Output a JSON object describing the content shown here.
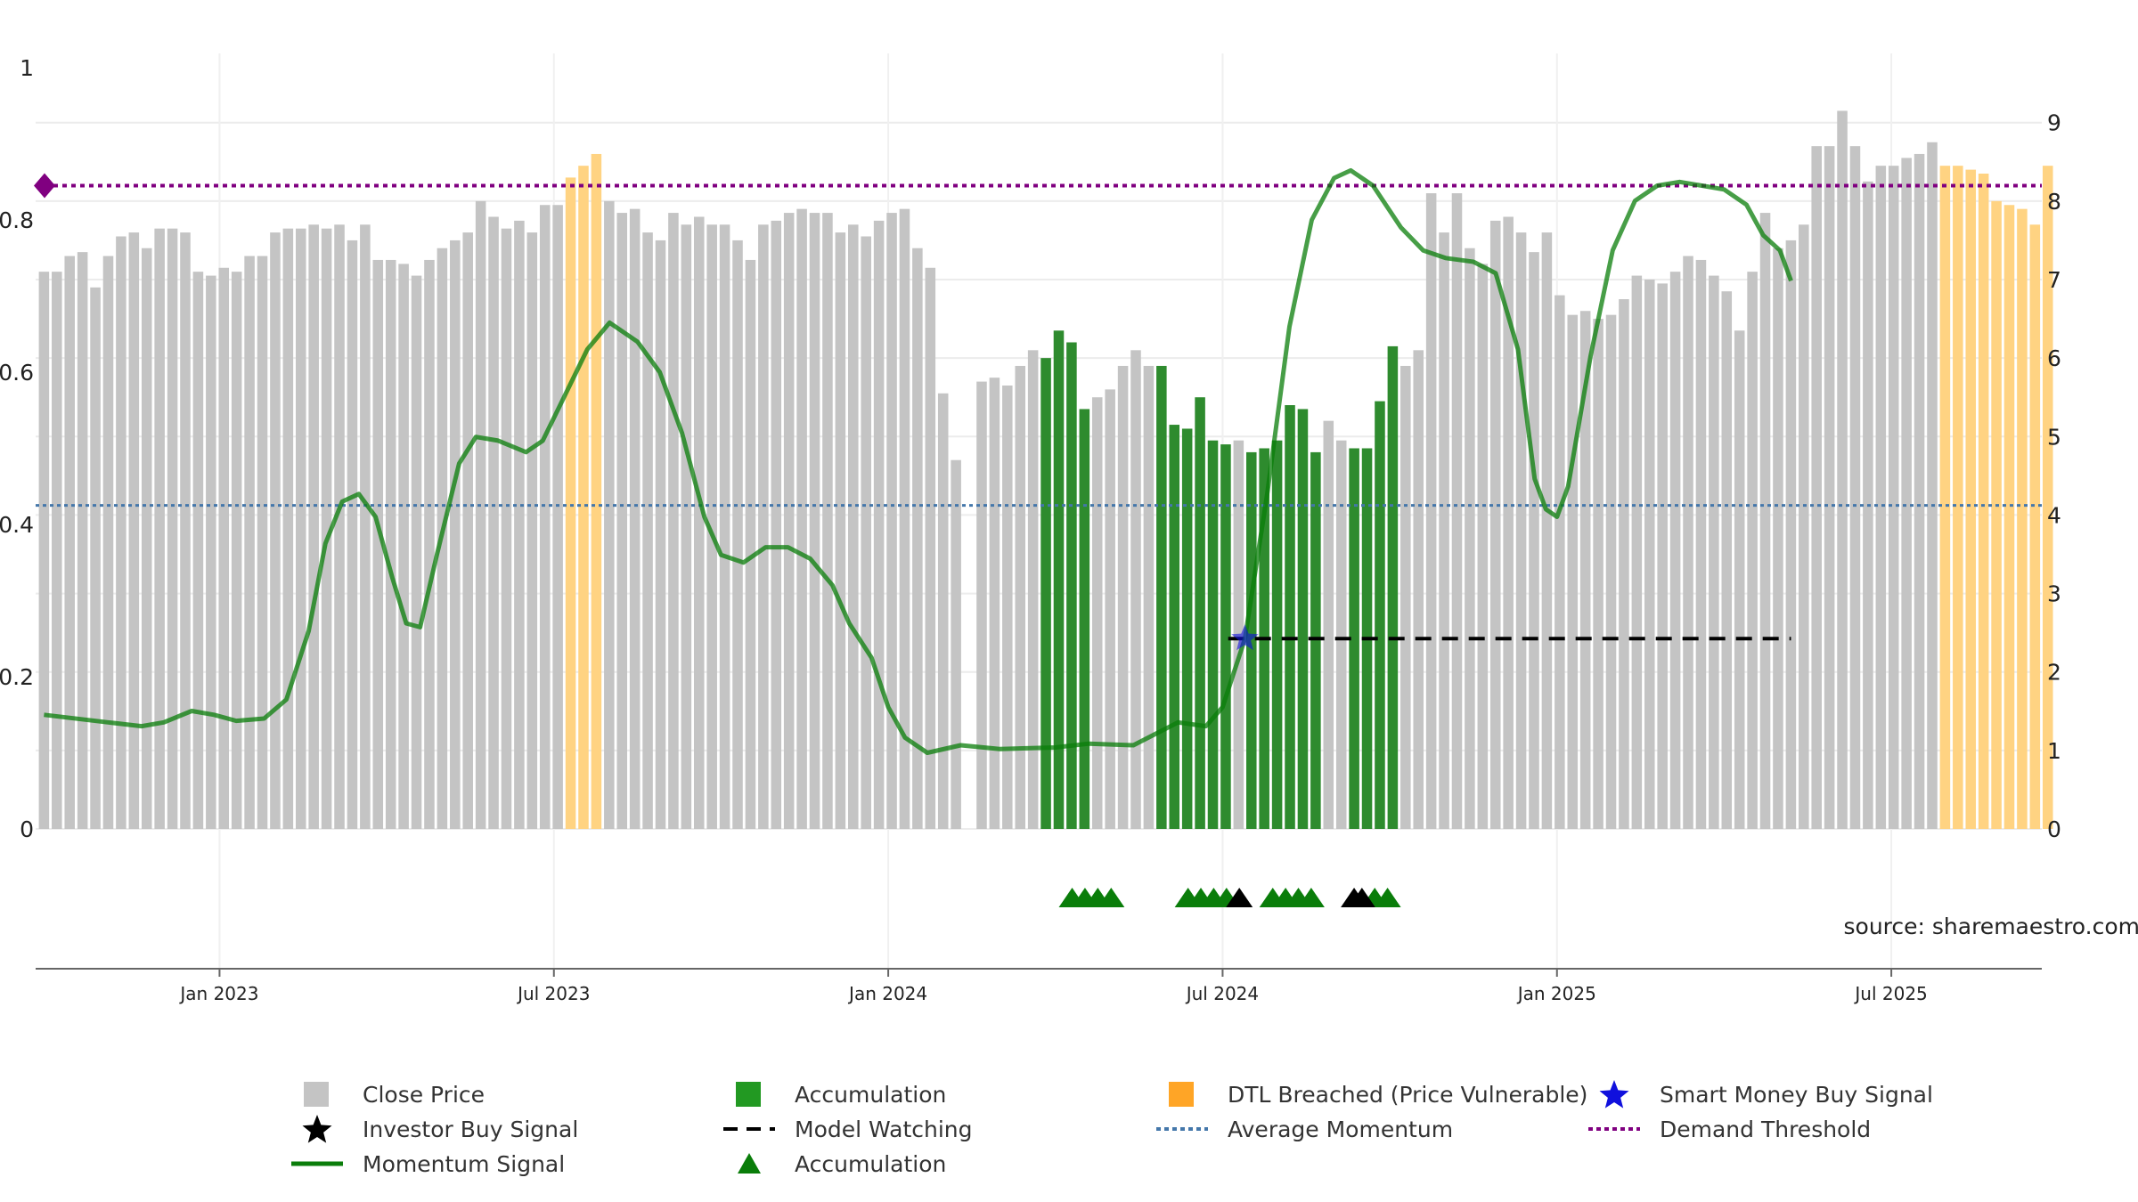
{
  "colors": {
    "close": "#c4c4c4",
    "accumulation": "#2e8b2e",
    "dtl": "#ffd382",
    "momentum": "#0a7d0a",
    "average": "#4477aa",
    "demand": "#800080",
    "model": "#000000",
    "smart": "#1010dd"
  },
  "chart_data": {
    "type": "bar",
    "title": "",
    "x_axis": {
      "ticks": [
        "Jan 2023",
        "Jul 2023",
        "Jan 2024",
        "Jul 2024",
        "Jan 2025",
        "Jul 2025"
      ],
      "tick_months": [
        2,
        8,
        14,
        20,
        26,
        32
      ],
      "range_months": [
        -1.3,
        34.7
      ]
    },
    "y_left": {
      "ticks": [
        "0",
        "0.2",
        "0.4",
        "0.6",
        "0.8",
        "1"
      ],
      "range": [
        0,
        1
      ]
    },
    "y_right": {
      "ticks": [
        "0",
        "1",
        "2",
        "3",
        "4",
        "5",
        "6",
        "7",
        "8",
        "9"
      ],
      "range": [
        0,
        9.7
      ]
    },
    "bars": {
      "start_month": -1.15,
      "step_month": 0.2305,
      "values": [
        7.1,
        7.1,
        7.3,
        7.35,
        6.9,
        7.3,
        7.55,
        7.6,
        7.4,
        7.65,
        7.65,
        7.6,
        7.1,
        7.05,
        7.15,
        7.1,
        7.3,
        7.3,
        7.6,
        7.65,
        7.65,
        7.7,
        7.65,
        7.7,
        7.5,
        7.7,
        7.25,
        7.25,
        7.2,
        7.05,
        7.25,
        7.4,
        7.5,
        7.6,
        8.0,
        7.8,
        7.65,
        7.75,
        7.6,
        7.95,
        7.95,
        8.3,
        8.45,
        8.6,
        8.0,
        7.85,
        7.9,
        7.6,
        7.5,
        7.85,
        7.7,
        7.8,
        7.7,
        7.7,
        7.5,
        7.25,
        7.7,
        7.75,
        7.85,
        7.9,
        7.85,
        7.85,
        7.6,
        7.7,
        7.55,
        7.75,
        7.85,
        7.9,
        7.4,
        7.15,
        5.55,
        4.7,
        0,
        5.7,
        5.75,
        5.65,
        5.9,
        6.1,
        6.0,
        6.35,
        6.2,
        5.35,
        5.5,
        5.6,
        5.9,
        6.1,
        5.9,
        5.9,
        5.15,
        5.1,
        5.5,
        4.95,
        4.9,
        4.95,
        4.8,
        4.85,
        4.95,
        5.4,
        5.35,
        4.8,
        5.2,
        4.95,
        4.85,
        4.85,
        5.45,
        6.15,
        5.9,
        6.1,
        8.1,
        7.6,
        8.1,
        7.4,
        7.2,
        7.75,
        7.8,
        7.6,
        7.35,
        7.6,
        6.8,
        6.55,
        6.6,
        6.5,
        6.55,
        6.75,
        7.05,
        7.0,
        6.95,
        7.1,
        7.3,
        7.25,
        7.05,
        6.85,
        6.35,
        7.1,
        7.85,
        7.4,
        7.5,
        7.7,
        8.7,
        8.7,
        9.15,
        8.7,
        8.25,
        8.45,
        8.45,
        8.55,
        8.6,
        8.75,
        8.45,
        8.45,
        8.4,
        8.35,
        8.0,
        7.95,
        7.9,
        7.7,
        8.45
      ],
      "accumulation_idx": [
        [
          78,
          81
        ],
        [
          87,
          92
        ],
        [
          94,
          99
        ],
        [
          102,
          105
        ]
      ],
      "dtl_idx": [
        [
          41,
          43
        ],
        [
          148,
          161
        ],
        [
          155,
          155
        ]
      ],
      "note": "last bar (index 155) is DTL-highlighted"
    },
    "series": [
      {
        "name": "Momentum Signal",
        "axis": "left",
        "points": [
          [
            -1.15,
            0.15
          ],
          [
            0,
            0.14
          ],
          [
            0.6,
            0.135
          ],
          [
            1.0,
            0.14
          ],
          [
            1.5,
            0.155
          ],
          [
            1.9,
            0.15
          ],
          [
            2.3,
            0.142
          ],
          [
            2.8,
            0.145
          ],
          [
            3.2,
            0.17
          ],
          [
            3.6,
            0.26
          ],
          [
            3.9,
            0.375
          ],
          [
            4.2,
            0.43
          ],
          [
            4.5,
            0.44
          ],
          [
            4.8,
            0.41
          ],
          [
            5.1,
            0.33
          ],
          [
            5.35,
            0.27
          ],
          [
            5.6,
            0.265
          ],
          [
            5.9,
            0.36
          ],
          [
            6.3,
            0.48
          ],
          [
            6.6,
            0.515
          ],
          [
            7.0,
            0.51
          ],
          [
            7.5,
            0.495
          ],
          [
            7.8,
            0.51
          ],
          [
            8.2,
            0.57
          ],
          [
            8.6,
            0.63
          ],
          [
            9.0,
            0.665
          ],
          [
            9.5,
            0.64
          ],
          [
            9.9,
            0.6
          ],
          [
            10.3,
            0.52
          ],
          [
            10.7,
            0.41
          ],
          [
            11.0,
            0.36
          ],
          [
            11.4,
            0.35
          ],
          [
            11.8,
            0.37
          ],
          [
            12.2,
            0.37
          ],
          [
            12.6,
            0.355
          ],
          [
            13.0,
            0.32
          ],
          [
            13.3,
            0.27
          ],
          [
            13.7,
            0.225
          ],
          [
            14.0,
            0.16
          ],
          [
            14.3,
            0.12
          ],
          [
            14.7,
            0.1
          ],
          [
            15.3,
            0.11
          ],
          [
            16.0,
            0.105
          ],
          [
            17.0,
            0.107
          ],
          [
            17.6,
            0.112
          ],
          [
            18.4,
            0.11
          ],
          [
            18.8,
            0.125
          ],
          [
            19.2,
            0.14
          ],
          [
            19.7,
            0.135
          ],
          [
            20.0,
            0.16
          ],
          [
            20.4,
            0.25
          ],
          [
            20.8,
            0.44
          ],
          [
            21.2,
            0.66
          ],
          [
            21.6,
            0.8
          ],
          [
            22.0,
            0.855
          ],
          [
            22.3,
            0.865
          ],
          [
            22.7,
            0.845
          ],
          [
            23.2,
            0.79
          ],
          [
            23.6,
            0.76
          ],
          [
            24.0,
            0.75
          ],
          [
            24.5,
            0.745
          ],
          [
            24.9,
            0.73
          ],
          [
            25.3,
            0.63
          ],
          [
            25.6,
            0.46
          ],
          [
            25.8,
            0.42
          ],
          [
            26.0,
            0.41
          ],
          [
            26.2,
            0.45
          ],
          [
            26.6,
            0.62
          ],
          [
            27.0,
            0.76
          ],
          [
            27.4,
            0.825
          ],
          [
            27.8,
            0.845
          ],
          [
            28.2,
            0.85
          ],
          [
            28.6,
            0.845
          ],
          [
            29.0,
            0.84
          ],
          [
            29.4,
            0.82
          ],
          [
            29.7,
            0.78
          ],
          [
            30.0,
            0.76
          ],
          [
            30.2,
            0.72
          ]
        ]
      },
      {
        "name": "Average Momentum",
        "axis": "left",
        "value": 0.425
      },
      {
        "name": "Demand Threshold",
        "axis": "left",
        "value": 0.845
      },
      {
        "name": "Model Watching",
        "axis": "left",
        "value": 0.25,
        "x_range": [
          20.1,
          30.2
        ]
      },
      {
        "name": "Smart Money Buy Signal",
        "axis": "left",
        "x": 20.4,
        "y": 0.25
      }
    ],
    "markers": {
      "accumulation_triangles": [
        17.3,
        17.53,
        17.76,
        18.0,
        19.38,
        19.61,
        19.84,
        20.07,
        20.9,
        21.13,
        21.36,
        21.59,
        22.73,
        22.96
      ],
      "investor_buy_triangles": [
        20.3,
        22.36,
        22.5
      ]
    },
    "annotations": [
      "source: sharemaestro.com"
    ],
    "legend": [
      {
        "key": "close",
        "label": "Close Price",
        "symbol": "square"
      },
      {
        "key": "accumulation",
        "label": "Accumulation",
        "symbol": "square"
      },
      {
        "key": "dtl",
        "label": "DTL Breached (Price Vulnerable)",
        "symbol": "square"
      },
      {
        "key": "smart",
        "label": "Smart Money Buy Signal",
        "symbol": "star"
      },
      {
        "key": "model",
        "label": "Investor Buy Signal",
        "symbol": "star-black"
      },
      {
        "key": "model",
        "label": "Model Watching",
        "symbol": "dash"
      },
      {
        "key": "average",
        "label": "Average Momentum",
        "symbol": "dot"
      },
      {
        "key": "demand",
        "label": "Demand Threshold",
        "symbol": "dot-purple"
      },
      {
        "key": "momentum",
        "label": "Momentum Signal",
        "symbol": "line"
      },
      {
        "key": "momentum",
        "label": "Accumulation",
        "symbol": "triangle"
      }
    ]
  }
}
